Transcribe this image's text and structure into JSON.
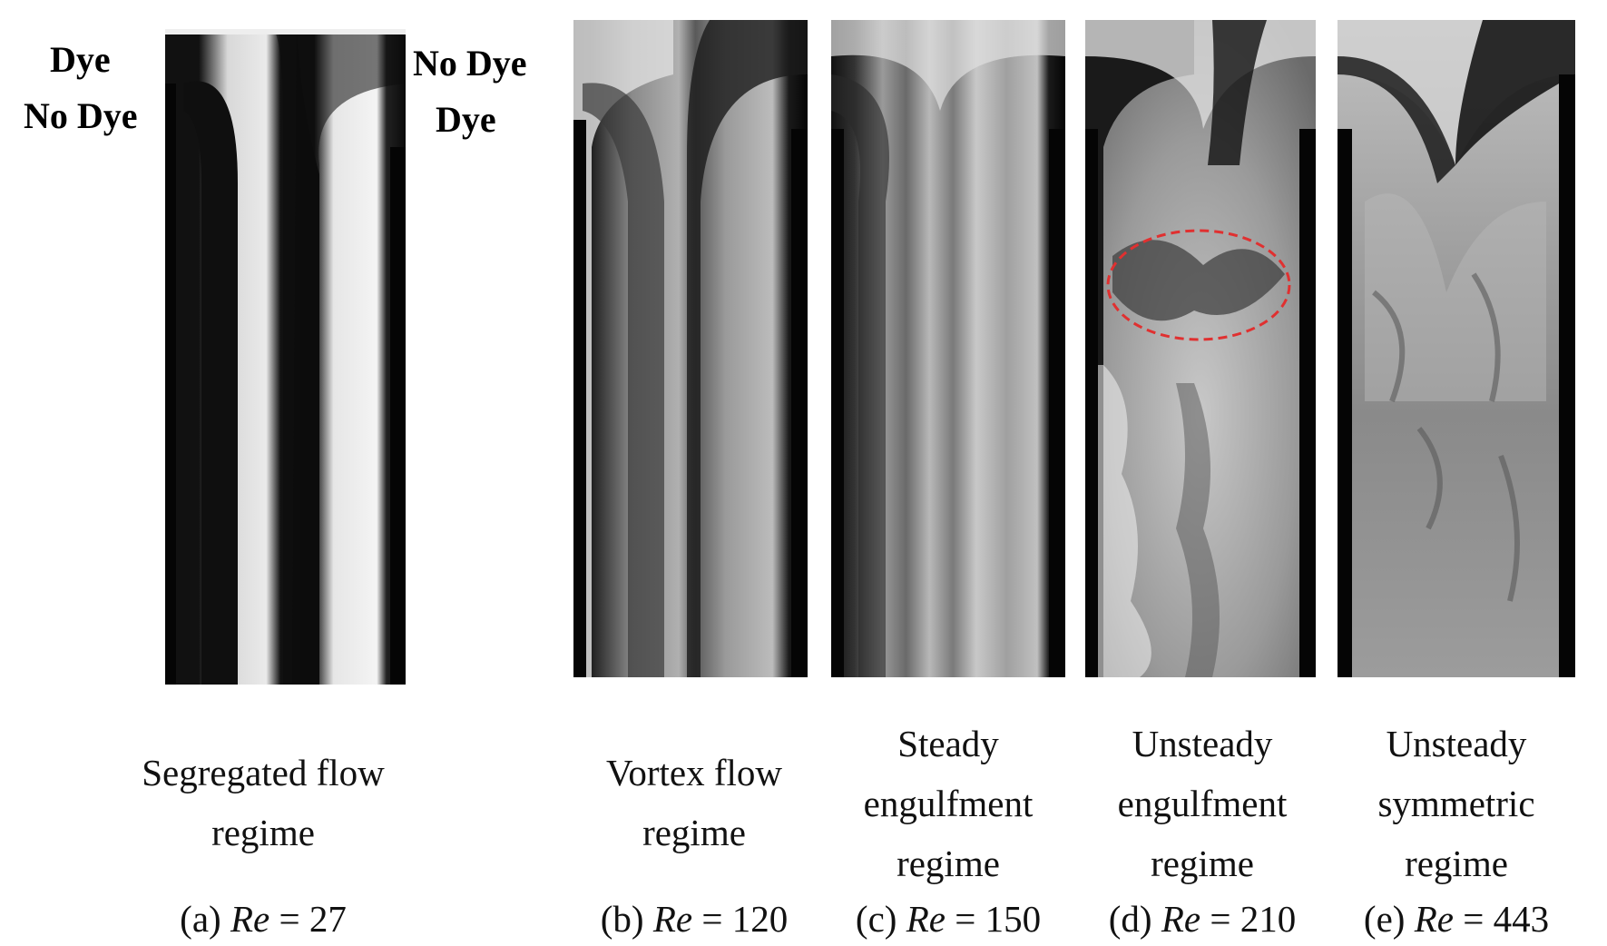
{
  "labels": {
    "dye_left": "Dye",
    "no_dye_left": "No Dye",
    "no_dye_right": "No Dye",
    "dye_right": "Dye"
  },
  "panels": [
    {
      "id": "a",
      "caption_line1": "Segregated flow",
      "caption_line2": "regime",
      "caption_line3": "",
      "letter": "(a)",
      "re_symbol": "Re",
      "equals": "=",
      "re_value": "27"
    },
    {
      "id": "b",
      "caption_line1": "Vortex flow",
      "caption_line2": "regime",
      "caption_line3": "",
      "letter": "(b)",
      "re_symbol": "Re",
      "equals": "=",
      "re_value": "120"
    },
    {
      "id": "c",
      "caption_line1": "Steady",
      "caption_line2": "engulfment",
      "caption_line3": "regime",
      "letter": "(c)",
      "re_symbol": "Re",
      "equals": "=",
      "re_value": "150"
    },
    {
      "id": "d",
      "caption_line1": "Unsteady",
      "caption_line2": "engulfment",
      "caption_line3": "regime",
      "letter": "(d)",
      "re_symbol": "Re",
      "equals": "=",
      "re_value": "210"
    },
    {
      "id": "e",
      "caption_line1": "Unsteady",
      "caption_line2": "symmetric",
      "caption_line3": "regime",
      "letter": "(e)",
      "re_symbol": "Re",
      "equals": "=",
      "re_value": "443"
    }
  ],
  "colors": {
    "highlight_ellipse": "#e03030",
    "background": "#ffffff"
  }
}
